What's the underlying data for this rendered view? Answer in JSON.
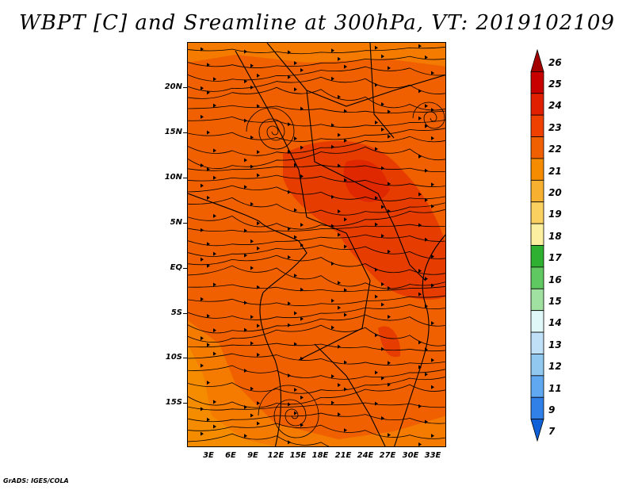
{
  "title": "WBPT [C] and Sreamline at 300hPa, VT: 2019102109",
  "credit": "GrADS: IGES/COLA",
  "latitude_labels": [
    "20N",
    "15N",
    "10N",
    "5N",
    "EQ",
    "5S",
    "10S",
    "15S"
  ],
  "longitude_labels": [
    "3E",
    "6E",
    "9E",
    "12E",
    "15E",
    "18E",
    "21E",
    "24E",
    "27E",
    "30E",
    "33E"
  ],
  "colorbar": {
    "levels": [
      "26",
      "25",
      "24",
      "23",
      "22",
      "21",
      "20",
      "19",
      "18",
      "17",
      "16",
      "15",
      "14",
      "13",
      "12",
      "11",
      "9",
      "7"
    ],
    "colors": [
      "#a50000",
      "#c80000",
      "#e02000",
      "#f04000",
      "#f06000",
      "#f58c00",
      "#f8b030",
      "#fad060",
      "#fcf0a0",
      "#30b030",
      "#60c860",
      "#a0e0a0",
      "#e0f8f8",
      "#c0e0f8",
      "#90c8f0",
      "#60a8f0",
      "#3080e8",
      "#1060d8"
    ]
  },
  "colors": {
    "background_field": "#f06000",
    "warm_core": "#e03000",
    "cool_edge": "#f58c00",
    "streamline": "#000000",
    "coastline": "#000000"
  }
}
